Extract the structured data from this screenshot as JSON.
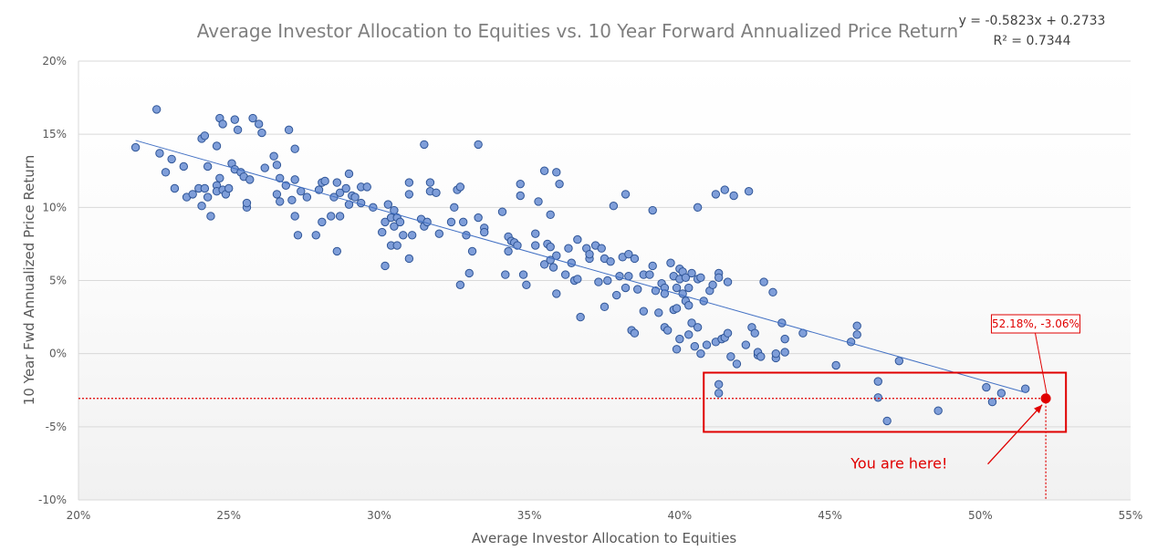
{
  "chart_data": {
    "type": "scatter",
    "title": "Average Investor Allocation to Equities vs. 10 Year Forward Annualized Price Return",
    "xlabel": "Average Investor Allocation to Equities",
    "ylabel": "10 Year Fwd Annualized Price Return",
    "xlim": [
      0.2,
      0.55
    ],
    "ylim": [
      -0.1,
      0.2
    ],
    "x_ticks": [
      0.2,
      0.25,
      0.3,
      0.35,
      0.4,
      0.45,
      0.5,
      0.55
    ],
    "x_tick_labels": [
      "20%",
      "25%",
      "30%",
      "35%",
      "40%",
      "45%",
      "50%",
      "55%"
    ],
    "y_ticks": [
      -0.1,
      -0.05,
      0.0,
      0.05,
      0.1,
      0.15,
      0.2
    ],
    "y_tick_labels": [
      "-10%",
      "-5%",
      "0%",
      "5%",
      "10%",
      "15%",
      "20%"
    ],
    "grid": "horizontal",
    "point_color": "#7f9ed9",
    "point_edge_color": "#2f5597",
    "trendline": {
      "slope": -0.5823,
      "intercept": 0.2733,
      "x_range": [
        0.219,
        0.515
      ],
      "color": "#4472c4",
      "equation_text": "y = -0.5823x + 0.2733",
      "r2_text": "R² = 0.7344"
    },
    "highlight": {
      "x": 0.5218,
      "y": -0.0306,
      "label": "52.18%, -3.06%",
      "note": "You are here!",
      "color": "#e00000"
    },
    "points": [
      [
        0.219,
        0.141
      ],
      [
        0.226,
        0.167
      ],
      [
        0.227,
        0.137
      ],
      [
        0.229,
        0.124
      ],
      [
        0.231,
        0.133
      ],
      [
        0.232,
        0.113
      ],
      [
        0.235,
        0.128
      ],
      [
        0.236,
        0.107
      ],
      [
        0.238,
        0.109
      ],
      [
        0.24,
        0.113
      ],
      [
        0.241,
        0.101
      ],
      [
        0.241,
        0.147
      ],
      [
        0.242,
        0.149
      ],
      [
        0.242,
        0.113
      ],
      [
        0.243,
        0.107
      ],
      [
        0.243,
        0.128
      ],
      [
        0.244,
        0.094
      ],
      [
        0.246,
        0.142
      ],
      [
        0.246,
        0.115
      ],
      [
        0.246,
        0.111
      ],
      [
        0.247,
        0.161
      ],
      [
        0.247,
        0.12
      ],
      [
        0.248,
        0.157
      ],
      [
        0.248,
        0.112
      ],
      [
        0.249,
        0.109
      ],
      [
        0.25,
        0.113
      ],
      [
        0.251,
        0.13
      ],
      [
        0.252,
        0.16
      ],
      [
        0.252,
        0.126
      ],
      [
        0.253,
        0.153
      ],
      [
        0.254,
        0.124
      ],
      [
        0.255,
        0.121
      ],
      [
        0.256,
        0.1
      ],
      [
        0.256,
        0.103
      ],
      [
        0.257,
        0.119
      ],
      [
        0.258,
        0.161
      ],
      [
        0.26,
        0.157
      ],
      [
        0.261,
        0.151
      ],
      [
        0.262,
        0.127
      ],
      [
        0.265,
        0.135
      ],
      [
        0.266,
        0.129
      ],
      [
        0.266,
        0.109
      ],
      [
        0.267,
        0.12
      ],
      [
        0.267,
        0.104
      ],
      [
        0.269,
        0.115
      ],
      [
        0.27,
        0.153
      ],
      [
        0.271,
        0.105
      ],
      [
        0.272,
        0.14
      ],
      [
        0.272,
        0.119
      ],
      [
        0.272,
        0.094
      ],
      [
        0.273,
        0.081
      ],
      [
        0.274,
        0.111
      ],
      [
        0.276,
        0.107
      ],
      [
        0.279,
        0.081
      ],
      [
        0.28,
        0.112
      ],
      [
        0.281,
        0.117
      ],
      [
        0.281,
        0.09
      ],
      [
        0.282,
        0.118
      ],
      [
        0.284,
        0.094
      ],
      [
        0.285,
        0.107
      ],
      [
        0.286,
        0.117
      ],
      [
        0.286,
        0.07
      ],
      [
        0.287,
        0.094
      ],
      [
        0.287,
        0.11
      ],
      [
        0.289,
        0.113
      ],
      [
        0.29,
        0.102
      ],
      [
        0.29,
        0.123
      ],
      [
        0.291,
        0.108
      ],
      [
        0.292,
        0.107
      ],
      [
        0.294,
        0.103
      ],
      [
        0.294,
        0.114
      ],
      [
        0.296,
        0.114
      ],
      [
        0.298,
        0.1
      ],
      [
        0.301,
        0.083
      ],
      [
        0.302,
        0.09
      ],
      [
        0.302,
        0.06
      ],
      [
        0.303,
        0.102
      ],
      [
        0.304,
        0.093
      ],
      [
        0.304,
        0.074
      ],
      [
        0.305,
        0.098
      ],
      [
        0.305,
        0.087
      ],
      [
        0.306,
        0.093
      ],
      [
        0.306,
        0.074
      ],
      [
        0.307,
        0.09
      ],
      [
        0.308,
        0.081
      ],
      [
        0.31,
        0.117
      ],
      [
        0.31,
        0.109
      ],
      [
        0.31,
        0.065
      ],
      [
        0.311,
        0.081
      ],
      [
        0.314,
        0.092
      ],
      [
        0.315,
        0.143
      ],
      [
        0.315,
        0.087
      ],
      [
        0.316,
        0.09
      ],
      [
        0.317,
        0.117
      ],
      [
        0.317,
        0.111
      ],
      [
        0.319,
        0.11
      ],
      [
        0.32,
        0.082
      ],
      [
        0.324,
        0.09
      ],
      [
        0.325,
        0.1
      ],
      [
        0.326,
        0.112
      ],
      [
        0.327,
        0.114
      ],
      [
        0.327,
        0.047
      ],
      [
        0.328,
        0.09
      ],
      [
        0.329,
        0.081
      ],
      [
        0.33,
        0.055
      ],
      [
        0.331,
        0.07
      ],
      [
        0.333,
        0.143
      ],
      [
        0.333,
        0.093
      ],
      [
        0.335,
        0.086
      ],
      [
        0.335,
        0.083
      ],
      [
        0.341,
        0.097
      ],
      [
        0.342,
        0.054
      ],
      [
        0.343,
        0.07
      ],
      [
        0.343,
        0.08
      ],
      [
        0.344,
        0.077
      ],
      [
        0.345,
        0.076
      ],
      [
        0.346,
        0.074
      ],
      [
        0.347,
        0.116
      ],
      [
        0.347,
        0.108
      ],
      [
        0.348,
        0.054
      ],
      [
        0.349,
        0.047
      ],
      [
        0.352,
        0.082
      ],
      [
        0.352,
        0.074
      ],
      [
        0.353,
        0.104
      ],
      [
        0.355,
        0.125
      ],
      [
        0.355,
        0.061
      ],
      [
        0.356,
        0.075
      ],
      [
        0.357,
        0.073
      ],
      [
        0.357,
        0.095
      ],
      [
        0.357,
        0.064
      ],
      [
        0.358,
        0.059
      ],
      [
        0.359,
        0.124
      ],
      [
        0.359,
        0.067
      ],
      [
        0.359,
        0.041
      ],
      [
        0.36,
        0.116
      ],
      [
        0.362,
        0.054
      ],
      [
        0.363,
        0.072
      ],
      [
        0.364,
        0.062
      ],
      [
        0.365,
        0.05
      ],
      [
        0.366,
        0.078
      ],
      [
        0.366,
        0.051
      ],
      [
        0.367,
        0.025
      ],
      [
        0.369,
        0.072
      ],
      [
        0.37,
        0.065
      ],
      [
        0.37,
        0.068
      ],
      [
        0.372,
        0.074
      ],
      [
        0.373,
        0.049
      ],
      [
        0.374,
        0.072
      ],
      [
        0.375,
        0.065
      ],
      [
        0.375,
        0.032
      ],
      [
        0.376,
        0.05
      ],
      [
        0.377,
        0.063
      ],
      [
        0.378,
        0.101
      ],
      [
        0.379,
        0.04
      ],
      [
        0.38,
        0.053
      ],
      [
        0.381,
        0.066
      ],
      [
        0.382,
        0.109
      ],
      [
        0.382,
        0.045
      ],
      [
        0.383,
        0.068
      ],
      [
        0.383,
        0.053
      ],
      [
        0.384,
        0.016
      ],
      [
        0.385,
        0.065
      ],
      [
        0.385,
        0.014
      ],
      [
        0.386,
        0.044
      ],
      [
        0.388,
        0.054
      ],
      [
        0.388,
        0.029
      ],
      [
        0.39,
        0.054
      ],
      [
        0.391,
        0.098
      ],
      [
        0.391,
        0.06
      ],
      [
        0.392,
        0.043
      ],
      [
        0.393,
        0.028
      ],
      [
        0.394,
        0.048
      ],
      [
        0.395,
        0.045
      ],
      [
        0.395,
        0.041
      ],
      [
        0.395,
        0.018
      ],
      [
        0.396,
        0.016
      ],
      [
        0.397,
        0.062
      ],
      [
        0.398,
        0.053
      ],
      [
        0.398,
        0.03
      ],
      [
        0.399,
        0.003
      ],
      [
        0.399,
        0.045
      ],
      [
        0.399,
        0.031
      ],
      [
        0.4,
        0.051
      ],
      [
        0.4,
        0.058
      ],
      [
        0.4,
        0.01
      ],
      [
        0.401,
        0.056
      ],
      [
        0.401,
        0.041
      ],
      [
        0.402,
        0.052
      ],
      [
        0.402,
        0.036
      ],
      [
        0.403,
        0.013
      ],
      [
        0.403,
        0.033
      ],
      [
        0.403,
        0.045
      ],
      [
        0.404,
        0.055
      ],
      [
        0.404,
        0.021
      ],
      [
        0.405,
        0.005
      ],
      [
        0.406,
        0.1
      ],
      [
        0.406,
        0.018
      ],
      [
        0.406,
        0.051
      ],
      [
        0.407,
        0.052
      ],
      [
        0.407,
        0.0
      ],
      [
        0.408,
        0.036
      ],
      [
        0.409,
        0.006
      ],
      [
        0.41,
        0.043
      ],
      [
        0.411,
        0.047
      ],
      [
        0.412,
        0.109
      ],
      [
        0.412,
        0.008
      ],
      [
        0.413,
        0.055
      ],
      [
        0.413,
        0.052
      ],
      [
        0.414,
        0.01
      ],
      [
        0.415,
        0.011
      ],
      [
        0.415,
        0.112
      ],
      [
        0.416,
        0.014
      ],
      [
        0.416,
        0.049
      ],
      [
        0.417,
        -0.002
      ],
      [
        0.418,
        0.108
      ],
      [
        0.419,
        -0.007
      ],
      [
        0.422,
        0.006
      ],
      [
        0.423,
        0.111
      ],
      [
        0.424,
        0.018
      ],
      [
        0.425,
        0.014
      ],
      [
        0.426,
        -0.001
      ],
      [
        0.426,
        0.001
      ],
      [
        0.427,
        -0.002
      ],
      [
        0.428,
        0.049
      ],
      [
        0.431,
        0.042
      ],
      [
        0.432,
        -0.003
      ],
      [
        0.432,
        0.0
      ],
      [
        0.434,
        0.021
      ],
      [
        0.435,
        0.01
      ],
      [
        0.435,
        0.001
      ],
      [
        0.441,
        0.014
      ],
      [
        0.452,
        -0.008
      ],
      [
        0.457,
        0.008
      ],
      [
        0.459,
        0.013
      ],
      [
        0.459,
        0.019
      ],
      [
        0.473,
        -0.005
      ],
      [
        0.413,
        -0.021
      ],
      [
        0.413,
        -0.027
      ],
      [
        0.466,
        -0.019
      ],
      [
        0.466,
        -0.03
      ],
      [
        0.469,
        -0.046
      ],
      [
        0.486,
        -0.039
      ],
      [
        0.502,
        -0.023
      ],
      [
        0.504,
        -0.033
      ],
      [
        0.507,
        -0.027
      ],
      [
        0.515,
        -0.024
      ]
    ]
  }
}
